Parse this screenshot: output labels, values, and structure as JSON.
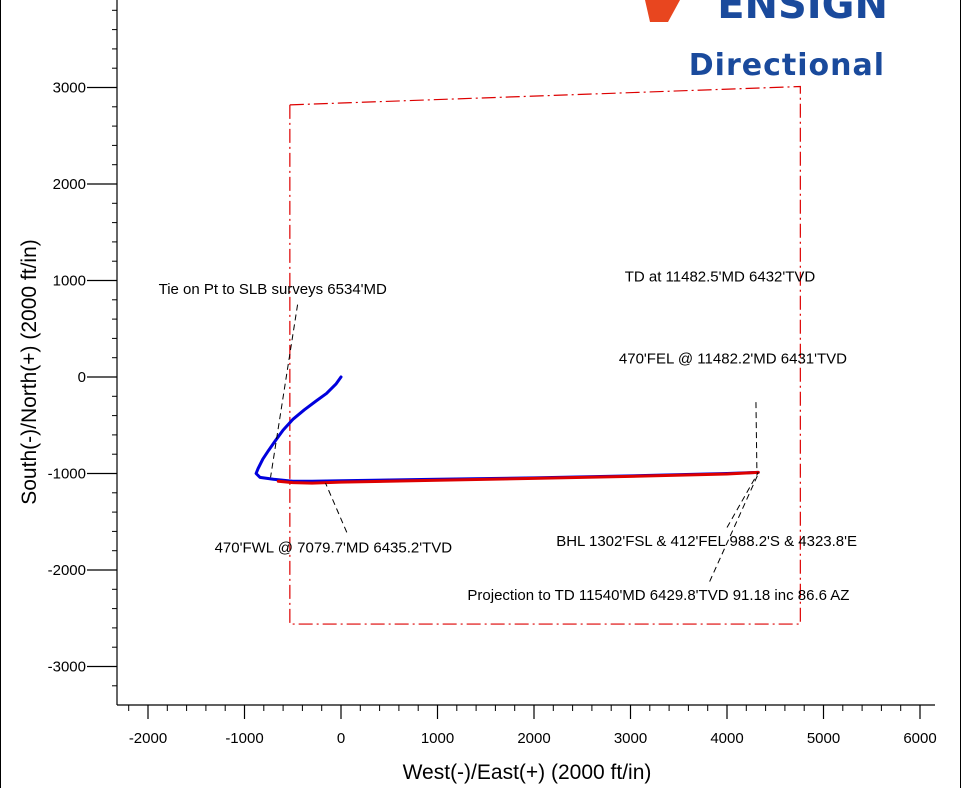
{
  "logo": {
    "line1": "ENSIGN",
    "line2": "Directional",
    "accent_color": "#e8461f",
    "text_color": "#1a4a9c"
  },
  "chart_data": {
    "type": "line",
    "xlabel": "West(-)/East(+) (2000 ft/in)",
    "ylabel": "South(-)/North(+) (2000 ft/in)",
    "xlim": [
      -2350,
      6300
    ],
    "ylim": [
      -3400,
      3900
    ],
    "x_ticks": [
      -2000,
      -1000,
      0,
      1000,
      2000,
      3000,
      4000,
      5000,
      6000
    ],
    "y_ticks": [
      -3000,
      -2000,
      -1000,
      0,
      1000,
      2000,
      3000
    ],
    "x_tick_labels": [
      "-2000",
      "-1000",
      "0",
      "1000",
      "2000",
      "3000",
      "4000",
      "5000",
      "6000"
    ],
    "y_tick_labels": [
      "-3000",
      "-2000",
      "-1000",
      "0",
      "1000",
      "2000",
      "3000"
    ],
    "series": [
      {
        "color": "#0000dd",
        "x": [
          0,
          -50,
          -150,
          -260,
          -380,
          -500,
          -600,
          -680,
          -750,
          -810,
          -860,
          -880,
          -840,
          -700,
          -500,
          -300,
          0,
          1000,
          2000,
          3000,
          4000,
          4323.8
        ],
        "y": [
          0,
          -70,
          -170,
          -250,
          -340,
          -440,
          -550,
          -660,
          -760,
          -850,
          -950,
          -1000,
          -1040,
          -1060,
          -1080,
          -1080,
          -1075,
          -1060,
          -1045,
          -1025,
          -1000,
          -988.2
        ]
      },
      {
        "color": "#dd0000",
        "x": [
          -650,
          -500,
          -300,
          0,
          1000,
          2000,
          3000,
          4000,
          4323.8
        ],
        "y": [
          -1080,
          -1095,
          -1100,
          -1090,
          -1070,
          -1050,
          -1030,
          -1005,
          -988.2
        ]
      }
    ],
    "boundary": {
      "color": "#dd0000",
      "x": [
        -530,
        4760,
        4760,
        -530,
        -530
      ],
      "y": [
        2820,
        3010,
        -2560,
        -2560,
        2820
      ]
    },
    "annotations": [
      {
        "text": "Tie on Pt to SLB surveys 6534'MD",
        "point": [
          -730,
          -1040
        ],
        "text_pos": [
          -1890,
          860
        ],
        "leader_from": [
          -450,
          750
        ],
        "anchor": "start"
      },
      {
        "text": "TD at 11482.5'MD 6432'TVD",
        "point": [
          4320,
          -990
        ],
        "text_pos": [
          2940,
          990
        ],
        "anchor": "start"
      },
      {
        "text": "470'FEL @ 11482.2'MD 6431'TVD",
        "point": [
          4310,
          -990
        ],
        "text_pos": [
          2880,
          140
        ],
        "leader_from": [
          4300,
          -260
        ],
        "anchor": "start"
      },
      {
        "text": "470'FWL @ 7079.7'MD 6435.2'TVD",
        "point": [
          -160,
          -1100
        ],
        "text_pos": [
          -1310,
          -1820
        ],
        "leader_from": [
          60,
          -1610
        ],
        "anchor": "start"
      },
      {
        "text": "BHL 1302'FSL & 412'FEL   988.2'S & 4323.8'E",
        "point": [
          4323.8,
          -988.2
        ],
        "text_pos": [
          2230,
          -1750
        ],
        "leader_from": [
          4000,
          -1560
        ],
        "anchor": "start"
      },
      {
        "text": "Projection to TD 11540'MD 6429.8'TVD 91.18 inc 86.6 AZ",
        "point": [
          4330,
          -990
        ],
        "text_pos": [
          1310,
          -2310
        ],
        "leader_from": [
          3820,
          -2120
        ],
        "anchor": "start"
      }
    ]
  }
}
